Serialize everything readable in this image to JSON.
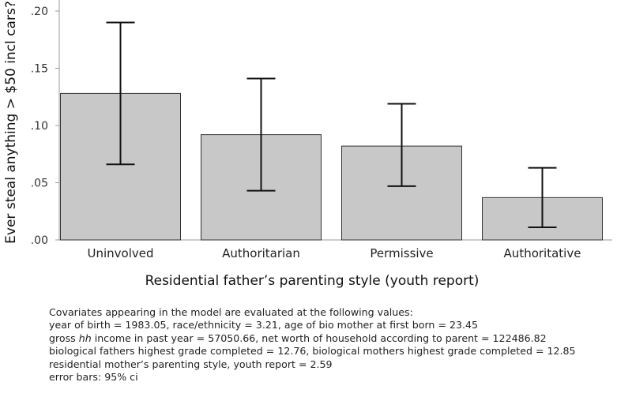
{
  "chart_data": {
    "type": "bar",
    "categories": [
      "Uninvolved",
      "Authoritarian",
      "Permissive",
      "Authoritative"
    ],
    "values": [
      0.128,
      0.092,
      0.082,
      0.037
    ],
    "ci_lower": [
      0.066,
      0.043,
      0.047,
      0.011
    ],
    "ci_upper": [
      0.19,
      0.141,
      0.119,
      0.063
    ],
    "xlabel": "Residential father’s parenting style (youth report)",
    "ylabel": "Ever steal anything > $50 incl cars?",
    "yticks": [
      ".00",
      ".05",
      ".10",
      ".15",
      ".20"
    ],
    "ytick_values": [
      0,
      0.05,
      0.1,
      0.15,
      0.2
    ],
    "ylim": [
      0,
      0.2
    ],
    "grid": false,
    "bar_color": "#c8c8c8",
    "bar_edge_color": "#333333"
  },
  "notes": {
    "line1": "Covariates appearing in the model are evaluated at the following values:",
    "line2": "year of birth = 1983.05, race/ethnicity = 3.21, age of bio mother at first born = 23.45",
    "line3_prefix": "gross ",
    "line3_hh": "hh",
    "line3_rest": " income in past year = 57050.66, net worth of household according to parent = 122486.82",
    "line4": "biological fathers highest grade completed = 12.76, biological mothers highest grade completed = 12.85",
    "line5": "residential mother’s parenting style, youth report = 2.59",
    "line6": "error bars: 95% ci"
  }
}
